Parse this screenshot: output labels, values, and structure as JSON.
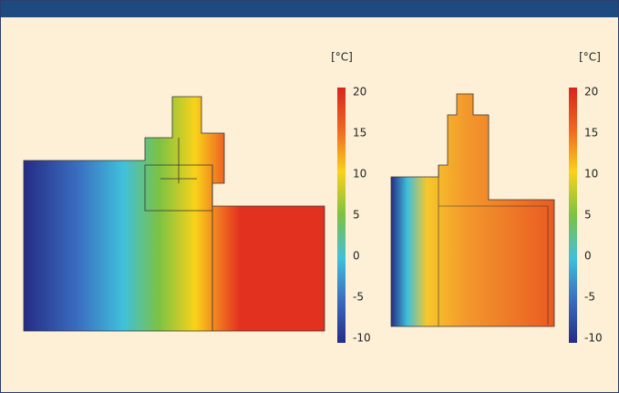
{
  "panels": [
    {
      "unit": "[°C]",
      "ticks": [
        20,
        15,
        10,
        5,
        0,
        -5,
        -10
      ]
    },
    {
      "unit": "[°C]",
      "ticks": [
        20,
        15,
        10,
        5,
        0,
        -5,
        -10
      ]
    }
  ]
}
